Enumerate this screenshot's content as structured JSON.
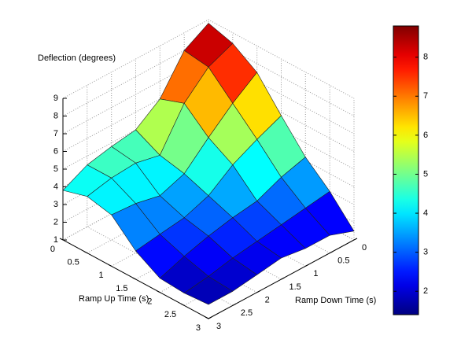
{
  "chart_data": {
    "type": "surface",
    "z_label": "Deflection (degrees)",
    "x_label": "Ramp Up Time (s)",
    "y_label": "Ramp Down Time (s)",
    "x": [
      0,
      0.5,
      1,
      1.5,
      2,
      2.5,
      3
    ],
    "y": [
      0,
      0.5,
      1,
      1.5,
      2,
      2.5,
      3
    ],
    "z": [
      [
        8.8,
        8.0,
        6.0,
        5.0,
        4.8,
        4.5,
        3.8
      ],
      [
        8.4,
        7.8,
        6.5,
        4.3,
        4.6,
        4.5,
        4.2
      ],
      [
        7.5,
        6.5,
        5.3,
        4.0,
        3.5,
        3.8,
        3.9
      ],
      [
        5.8,
        5.2,
        4.5,
        3.5,
        3.0,
        2.8,
        2.6
      ],
      [
        4.2,
        3.8,
        3.2,
        3.0,
        2.7,
        2.3,
        1.8
      ],
      [
        3.0,
        2.8,
        2.6,
        2.4,
        2.2,
        1.9,
        1.7
      ],
      [
        1.5,
        2.0,
        2.0,
        2.2,
        2.0,
        1.8,
        1.8
      ]
    ],
    "xlim": [
      0,
      3
    ],
    "ylim": [
      0,
      3
    ],
    "zlim": [
      1,
      9
    ],
    "xticks": [
      0,
      0.5,
      1,
      1.5,
      2,
      2.5,
      3
    ],
    "yticks": [
      0,
      0.5,
      1,
      1.5,
      2,
      2.5,
      3
    ],
    "zticks": [
      1,
      2,
      3,
      4,
      5,
      6,
      7,
      8,
      9
    ],
    "clim": [
      1.4,
      8.8
    ],
    "cticks": [
      2,
      3,
      4,
      5,
      6,
      7,
      8
    ],
    "colormap": "jet",
    "grid": true
  }
}
